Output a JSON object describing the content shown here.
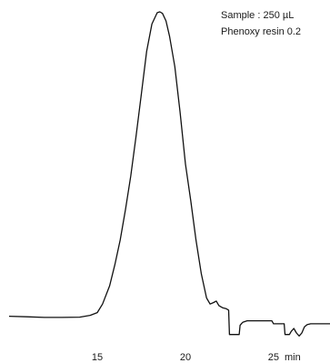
{
  "chart_data": {
    "type": "line",
    "title": "",
    "xlabel": "min",
    "ylabel": "",
    "grid": false,
    "xlim": [
      10.0,
      28.2
    ],
    "ylim": [
      -0.07,
      1.0
    ],
    "xticks": [
      {
        "value": 15,
        "label": "15"
      },
      {
        "value": 20,
        "label": "20"
      },
      {
        "value": 25,
        "label": "25"
      }
    ],
    "annotations": [
      {
        "name": "sample-label",
        "text": "Sample : 250 µL"
      },
      {
        "name": "phenoxy-label",
        "text": "Phenoxy resin 0.2"
      }
    ],
    "series": [
      {
        "x": [
          10.0,
          11.0,
          12.0,
          13.0,
          14.0,
          14.6,
          15.0,
          15.3,
          15.7,
          16.0,
          16.3,
          16.6,
          16.9,
          17.2,
          17.5,
          17.8,
          18.1,
          18.4,
          18.55,
          18.7,
          18.9,
          19.1,
          19.4,
          19.7,
          20.0,
          20.3,
          20.6,
          20.9,
          21.2,
          21.4,
          21.6,
          21.75,
          21.9,
          22.1,
          22.3,
          22.45,
          22.5,
          22.8,
          23.05,
          23.1,
          23.2,
          23.25,
          23.5,
          24.0,
          24.5,
          24.9,
          25.0,
          25.6,
          25.65,
          25.9,
          26.0,
          26.15,
          26.3,
          26.45,
          26.6,
          26.75,
          26.9,
          27.1,
          27.3,
          27.6,
          28.2
        ],
        "y": [
          0.0,
          -0.002,
          -0.004,
          -0.004,
          -0.003,
          0.003,
          0.012,
          0.04,
          0.1,
          0.17,
          0.25,
          0.35,
          0.46,
          0.59,
          0.73,
          0.87,
          0.96,
          0.997,
          1.0,
          0.995,
          0.97,
          0.92,
          0.82,
          0.67,
          0.5,
          0.38,
          0.25,
          0.14,
          0.06,
          0.04,
          0.045,
          0.05,
          0.035,
          0.028,
          0.025,
          0.02,
          -0.06,
          -0.06,
          -0.06,
          -0.03,
          -0.023,
          -0.02,
          -0.015,
          -0.015,
          -0.015,
          -0.015,
          -0.025,
          -0.025,
          -0.06,
          -0.06,
          -0.05,
          -0.04,
          -0.055,
          -0.065,
          -0.055,
          -0.035,
          -0.028,
          -0.025,
          -0.025,
          -0.025,
          -0.025
        ]
      }
    ]
  }
}
